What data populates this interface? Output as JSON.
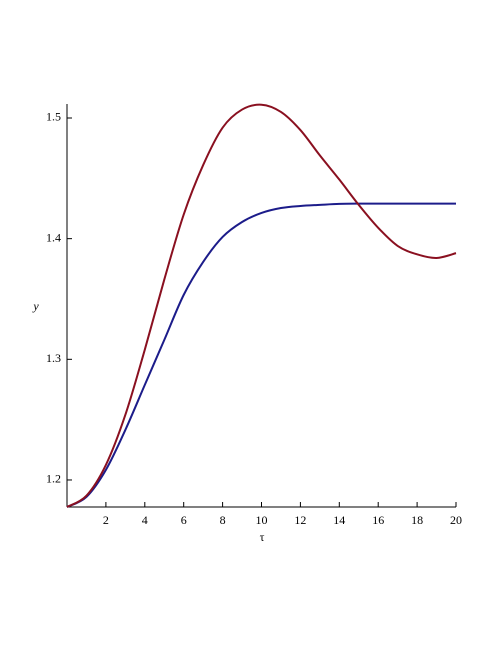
{
  "chart_data": {
    "type": "line",
    "x_label": "τ",
    "y_label": "y",
    "x": [
      0,
      1,
      2,
      3,
      4,
      5,
      6,
      7,
      8,
      9,
      10,
      11,
      12,
      13,
      14,
      15,
      16,
      17,
      18,
      19,
      20
    ],
    "series": [
      {
        "color": "#1c1c8a",
        "values": [
          1.1776,
          1.186,
          1.2084,
          1.2415,
          1.2788,
          1.316,
          1.3534,
          1.3807,
          1.4014,
          1.4138,
          1.4213,
          1.4254,
          1.4271,
          1.428,
          1.4288,
          1.429,
          1.429,
          1.429,
          1.429,
          1.429,
          1.429
        ]
      },
      {
        "color": "#8a1020",
        "values": [
          1.1776,
          1.187,
          1.2125,
          1.254,
          1.308,
          1.366,
          1.42,
          1.461,
          1.492,
          1.507,
          1.511,
          1.505,
          1.49,
          1.469,
          1.449,
          1.428,
          1.409,
          1.394,
          1.387,
          1.384,
          1.388
        ]
      }
    ],
    "xlim": [
      0,
      20
    ],
    "ylim": [
      1.1776,
      1.5116
    ],
    "xticks": [
      2,
      4,
      6,
      8,
      10,
      12,
      14,
      16,
      18,
      20
    ],
    "yticks": [
      1.2,
      1.3,
      1.4,
      1.5
    ]
  }
}
